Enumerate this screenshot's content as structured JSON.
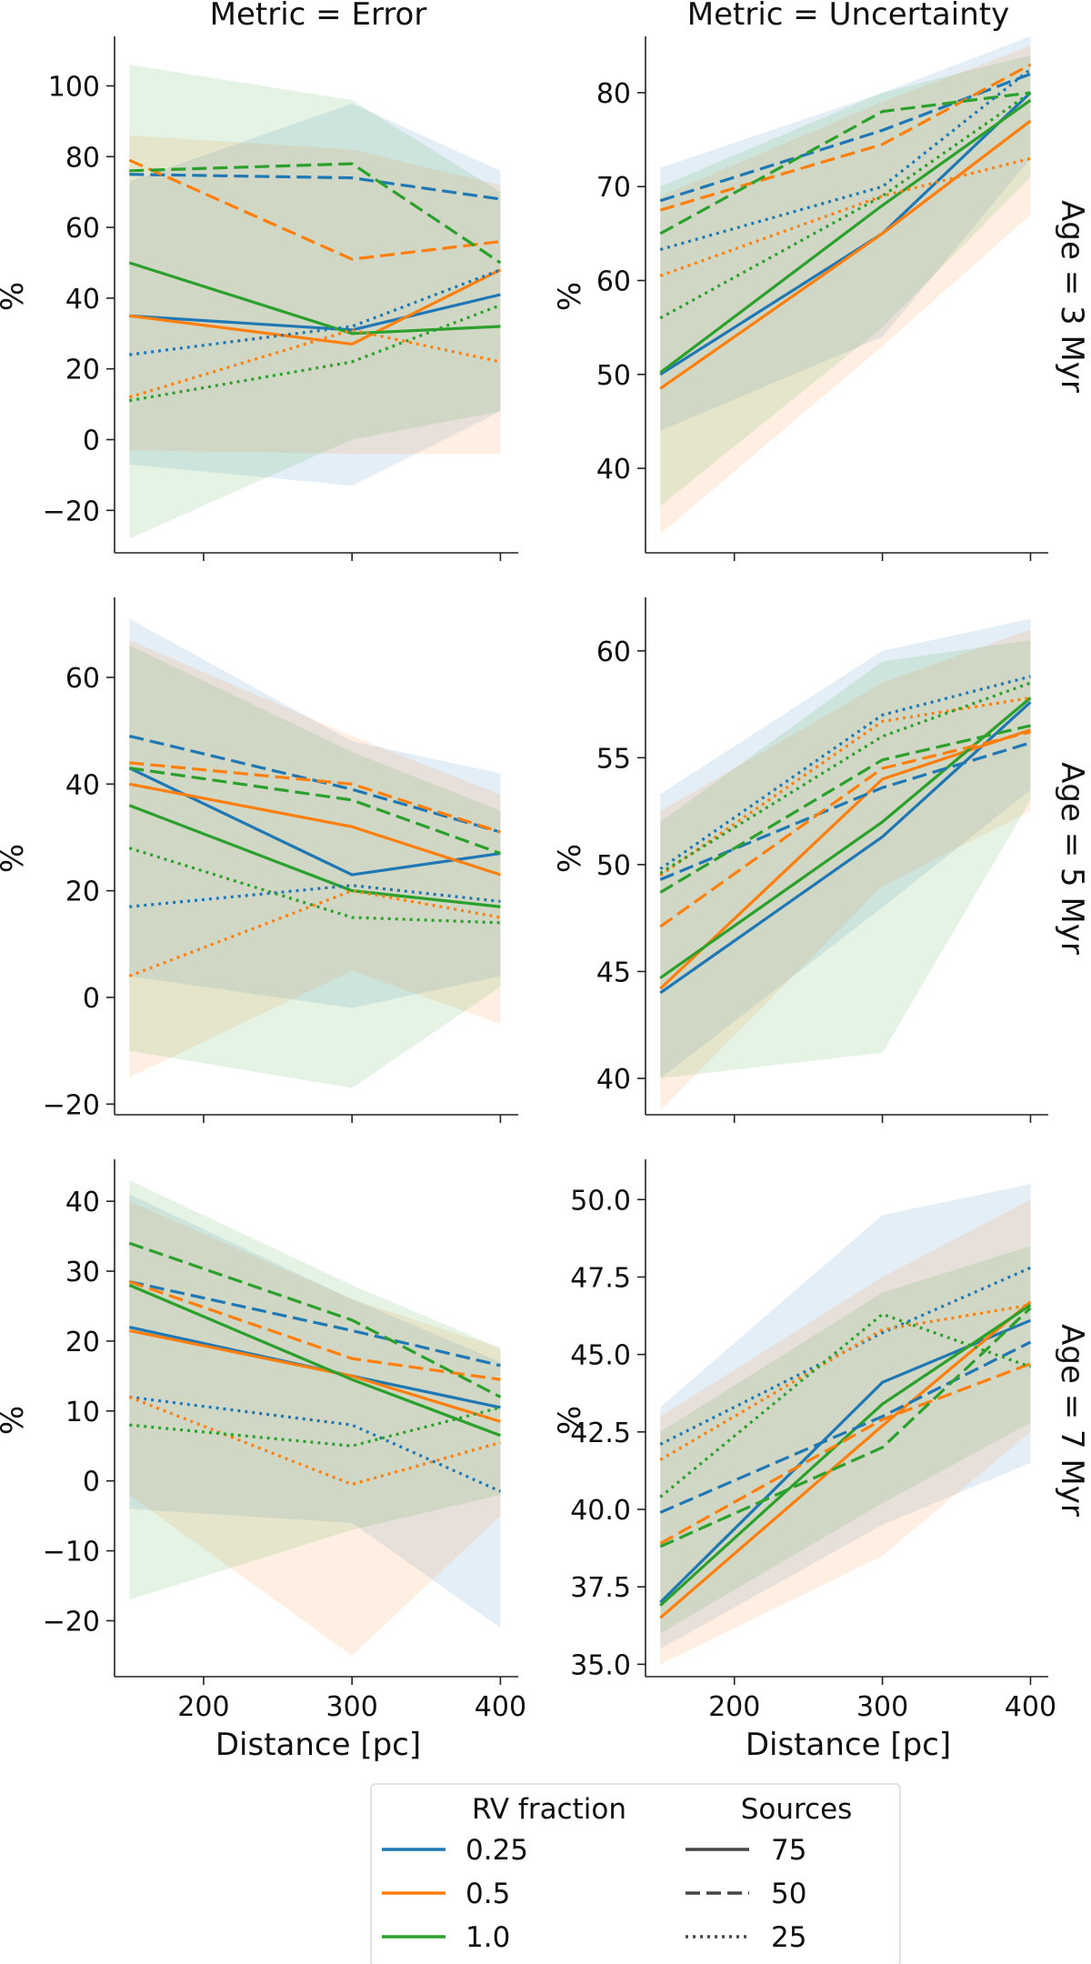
{
  "colors": {
    "0.25": "#1f77b4",
    "0.5": "#ff7f0e",
    "1.0": "#2ca02c"
  },
  "dash_styles": {
    "75": "solid",
    "50": "dashed",
    "25": "dotted"
  },
  "col_titles": [
    "Metric = Error",
    "Metric = Uncertainty"
  ],
  "row_titles": [
    "Age = 3 Myr",
    "Age = 5 Myr",
    "Age = 7 Myr"
  ],
  "ylabel": "%",
  "xlabel": "Distance [pc]",
  "legend": {
    "rv_title": "RV fraction",
    "rv_items": [
      "0.25",
      "0.5",
      "1.0"
    ],
    "src_title": "Sources",
    "src_items": [
      "75",
      "50",
      "25"
    ]
  },
  "chart_data": [
    {
      "id": "age3-error",
      "type": "line",
      "row": 0,
      "col": 0,
      "x": [
        150,
        300,
        400
      ],
      "xlim": [
        140,
        412
      ],
      "xticks": [
        200,
        300,
        400
      ],
      "ylim": [
        -32,
        114
      ],
      "yticks": [
        -20,
        0,
        20,
        40,
        60,
        80,
        100
      ],
      "ytick_labels": [
        "−20",
        "0",
        "20",
        "40",
        "60",
        "80",
        "100"
      ],
      "bands": [
        {
          "rv": "0.25",
          "lo": [
            -7,
            -13,
            8
          ],
          "hi": [
            73,
            95,
            76
          ]
        },
        {
          "rv": "0.5",
          "lo": [
            -3,
            -4,
            -4
          ],
          "hi": [
            86,
            82,
            72
          ]
        },
        {
          "rv": "1.0",
          "lo": [
            -28,
            0,
            8
          ],
          "hi": [
            106,
            96,
            70
          ]
        }
      ],
      "series": [
        {
          "rv": "0.25",
          "sources": "75",
          "values": [
            35,
            31,
            41
          ]
        },
        {
          "rv": "0.5",
          "sources": "75",
          "values": [
            35,
            27,
            48
          ]
        },
        {
          "rv": "1.0",
          "sources": "75",
          "values": [
            50,
            30,
            32
          ]
        },
        {
          "rv": "0.25",
          "sources": "50",
          "values": [
            75,
            74,
            68
          ]
        },
        {
          "rv": "0.5",
          "sources": "50",
          "values": [
            79,
            51,
            56
          ]
        },
        {
          "rv": "1.0",
          "sources": "50",
          "values": [
            76,
            78,
            50
          ]
        },
        {
          "rv": "0.25",
          "sources": "25",
          "values": [
            24,
            32,
            48
          ]
        },
        {
          "rv": "0.5",
          "sources": "25",
          "values": [
            12,
            31,
            22
          ]
        },
        {
          "rv": "1.0",
          "sources": "25",
          "values": [
            11,
            22,
            38
          ]
        }
      ]
    },
    {
      "id": "age3-uncertainty",
      "type": "line",
      "row": 0,
      "col": 1,
      "x": [
        150,
        300,
        400
      ],
      "xlim": [
        140,
        412
      ],
      "xticks": [
        200,
        300,
        400
      ],
      "ylim": [
        31,
        86
      ],
      "yticks": [
        40,
        50,
        60,
        70,
        80
      ],
      "ytick_labels": [
        "40",
        "50",
        "60",
        "70",
        "80"
      ],
      "bands": [
        {
          "rv": "0.25",
          "lo": [
            44,
            54,
            73
          ],
          "hi": [
            72,
            80,
            86
          ]
        },
        {
          "rv": "0.5",
          "lo": [
            33,
            53,
            67
          ],
          "hi": [
            69,
            79,
            85
          ]
        },
        {
          "rv": "1.0",
          "lo": [
            36,
            55,
            71
          ],
          "hi": [
            70,
            80,
            84
          ]
        }
      ],
      "series": [
        {
          "rv": "0.25",
          "sources": "75",
          "values": [
            50,
            65,
            80
          ]
        },
        {
          "rv": "0.5",
          "sources": "75",
          "values": [
            48.5,
            65,
            77
          ]
        },
        {
          "rv": "1.0",
          "sources": "75",
          "values": [
            50.2,
            68,
            79.2
          ]
        },
        {
          "rv": "0.25",
          "sources": "50",
          "values": [
            68.5,
            76,
            82
          ]
        },
        {
          "rv": "0.5",
          "sources": "50",
          "values": [
            67.5,
            74.5,
            83
          ]
        },
        {
          "rv": "1.0",
          "sources": "50",
          "values": [
            65,
            78,
            80
          ]
        },
        {
          "rv": "0.25",
          "sources": "25",
          "values": [
            63.3,
            70,
            82.5
          ]
        },
        {
          "rv": "0.5",
          "sources": "25",
          "values": [
            60.5,
            69,
            73
          ]
        },
        {
          "rv": "1.0",
          "sources": "25",
          "values": [
            56,
            69,
            80
          ]
        }
      ]
    },
    {
      "id": "age5-error",
      "type": "line",
      "row": 1,
      "col": 0,
      "x": [
        150,
        300,
        400
      ],
      "xlim": [
        140,
        412
      ],
      "xticks": [
        200,
        300,
        400
      ],
      "ylim": [
        -22,
        75
      ],
      "yticks": [
        -20,
        0,
        20,
        40,
        60
      ],
      "ytick_labels": [
        "−20",
        "0",
        "20",
        "40",
        "60"
      ],
      "bands": [
        {
          "rv": "0.25",
          "lo": [
            4,
            -2,
            4
          ],
          "hi": [
            71,
            48,
            42
          ]
        },
        {
          "rv": "0.5",
          "lo": [
            -15,
            5,
            -5
          ],
          "hi": [
            67,
            49,
            38
          ]
        },
        {
          "rv": "1.0",
          "lo": [
            -10,
            -17,
            2
          ],
          "hi": [
            66,
            46,
            35
          ]
        }
      ],
      "series": [
        {
          "rv": "0.25",
          "sources": "75",
          "values": [
            43,
            23,
            27
          ]
        },
        {
          "rv": "0.5",
          "sources": "75",
          "values": [
            40,
            32,
            23
          ]
        },
        {
          "rv": "1.0",
          "sources": "75",
          "values": [
            36,
            20,
            17
          ]
        },
        {
          "rv": "0.25",
          "sources": "50",
          "values": [
            49,
            39,
            31
          ]
        },
        {
          "rv": "0.5",
          "sources": "50",
          "values": [
            44,
            40,
            31
          ]
        },
        {
          "rv": "1.0",
          "sources": "50",
          "values": [
            43,
            37,
            27
          ]
        },
        {
          "rv": "0.25",
          "sources": "25",
          "values": [
            17,
            21,
            18
          ]
        },
        {
          "rv": "0.5",
          "sources": "25",
          "values": [
            4,
            20,
            15
          ]
        },
        {
          "rv": "1.0",
          "sources": "25",
          "values": [
            28,
            15,
            14
          ]
        }
      ]
    },
    {
      "id": "age5-uncertainty",
      "type": "line",
      "row": 1,
      "col": 1,
      "x": [
        150,
        300,
        400
      ],
      "xlim": [
        140,
        412
      ],
      "xticks": [
        200,
        300,
        400
      ],
      "ylim": [
        38.3,
        62.5
      ],
      "yticks": [
        40,
        45,
        50,
        55,
        60
      ],
      "ytick_labels": [
        "40",
        "45",
        "50",
        "55",
        "60"
      ],
      "bands": [
        {
          "rv": "0.25",
          "lo": [
            40,
            48,
            53.5
          ],
          "hi": [
            53.3,
            60,
            61.5
          ]
        },
        {
          "rv": "0.5",
          "lo": [
            38.5,
            49,
            52.5
          ],
          "hi": [
            52.5,
            58.5,
            61
          ]
        },
        {
          "rv": "1.0",
          "lo": [
            40,
            41.2,
            53
          ],
          "hi": [
            52,
            59.5,
            60.5
          ]
        }
      ],
      "series": [
        {
          "rv": "0.25",
          "sources": "75",
          "values": [
            44,
            51.3,
            57.6
          ]
        },
        {
          "rv": "0.5",
          "sources": "75",
          "values": [
            44.2,
            54,
            56.3
          ]
        },
        {
          "rv": "1.0",
          "sources": "75",
          "values": [
            44.7,
            52,
            57.8
          ]
        },
        {
          "rv": "0.25",
          "sources": "50",
          "values": [
            49.3,
            53.6,
            55.7
          ]
        },
        {
          "rv": "0.5",
          "sources": "50",
          "values": [
            47.1,
            54.5,
            56.2
          ]
        },
        {
          "rv": "1.0",
          "sources": "50",
          "values": [
            48.7,
            54.9,
            56.5
          ]
        },
        {
          "rv": "0.25",
          "sources": "25",
          "values": [
            49.8,
            57,
            58.8
          ]
        },
        {
          "rv": "0.5",
          "sources": "25",
          "values": [
            49.5,
            56.7,
            57.8
          ]
        },
        {
          "rv": "1.0",
          "sources": "25",
          "values": [
            49.6,
            56,
            58.5
          ]
        }
      ]
    },
    {
      "id": "age7-error",
      "type": "line",
      "row": 2,
      "col": 0,
      "x": [
        150,
        300,
        400
      ],
      "xlim": [
        140,
        412
      ],
      "xticks": [
        200,
        300,
        400
      ],
      "ylim": [
        -28,
        46
      ],
      "yticks": [
        -20,
        -10,
        0,
        10,
        20,
        30,
        40
      ],
      "ytick_labels": [
        "−20",
        "−10",
        "0",
        "10",
        "20",
        "30",
        "40"
      ],
      "bands": [
        {
          "rv": "0.25",
          "lo": [
            -4,
            -6,
            -21
          ],
          "hi": [
            41,
            26,
            17
          ]
        },
        {
          "rv": "0.5",
          "lo": [
            -2,
            -25,
            -5
          ],
          "hi": [
            40,
            26,
            19
          ]
        },
        {
          "rv": "1.0",
          "lo": [
            -17,
            -7,
            -2
          ],
          "hi": [
            43,
            28,
            19
          ]
        }
      ],
      "series": [
        {
          "rv": "0.25",
          "sources": "75",
          "values": [
            22,
            15,
            10.5
          ]
        },
        {
          "rv": "0.5",
          "sources": "75",
          "values": [
            21.5,
            15,
            8.5
          ]
        },
        {
          "rv": "1.0",
          "sources": "75",
          "values": [
            28,
            14.5,
            6.5
          ]
        },
        {
          "rv": "0.25",
          "sources": "50",
          "values": [
            28.5,
            21.5,
            16.5
          ]
        },
        {
          "rv": "0.5",
          "sources": "50",
          "values": [
            28.5,
            17.5,
            14.5
          ]
        },
        {
          "rv": "1.0",
          "sources": "50",
          "values": [
            34,
            23,
            12
          ]
        },
        {
          "rv": "0.25",
          "sources": "25",
          "values": [
            12,
            8,
            -1.5
          ]
        },
        {
          "rv": "0.5",
          "sources": "25",
          "values": [
            12,
            -0.5,
            5.5
          ]
        },
        {
          "rv": "1.0",
          "sources": "25",
          "values": [
            8,
            5,
            10.5
          ]
        }
      ]
    },
    {
      "id": "age7-uncertainty",
      "type": "line",
      "row": 2,
      "col": 1,
      "x": [
        150,
        300,
        400
      ],
      "xlim": [
        140,
        412
      ],
      "xticks": [
        200,
        300,
        400
      ],
      "ylim": [
        34.6,
        51.3
      ],
      "yticks": [
        35,
        37.5,
        40,
        42.5,
        45,
        47.5,
        50
      ],
      "ytick_labels": [
        "35.0",
        "37.5",
        "40.0",
        "42.5",
        "45.0",
        "47.5",
        "50.0"
      ],
      "bands": [
        {
          "rv": "0.25",
          "lo": [
            35.5,
            39.5,
            41.5
          ],
          "hi": [
            43.3,
            49.5,
            50.5
          ]
        },
        {
          "rv": "0.5",
          "lo": [
            35,
            38.5,
            42.5
          ],
          "hi": [
            43,
            47.5,
            50
          ]
        },
        {
          "rv": "1.0",
          "lo": [
            36,
            40.2,
            42.8
          ],
          "hi": [
            42.5,
            47,
            48.5
          ]
        }
      ],
      "series": [
        {
          "rv": "0.25",
          "sources": "75",
          "values": [
            37,
            44.1,
            46.1
          ]
        },
        {
          "rv": "0.5",
          "sources": "75",
          "values": [
            36.5,
            42.7,
            46.7
          ]
        },
        {
          "rv": "1.0",
          "sources": "75",
          "values": [
            36.9,
            43.4,
            46.6
          ]
        },
        {
          "rv": "0.25",
          "sources": "50",
          "values": [
            39.9,
            43,
            45.4
          ]
        },
        {
          "rv": "0.5",
          "sources": "50",
          "values": [
            38.9,
            42.9,
            44.7
          ]
        },
        {
          "rv": "1.0",
          "sources": "50",
          "values": [
            38.8,
            42,
            46.5
          ]
        },
        {
          "rv": "0.25",
          "sources": "25",
          "values": [
            42.1,
            45.7,
            47.8
          ]
        },
        {
          "rv": "0.5",
          "sources": "25",
          "values": [
            41.6,
            45.8,
            46.6
          ]
        },
        {
          "rv": "1.0",
          "sources": "25",
          "values": [
            40.4,
            46.3,
            44.6
          ]
        }
      ]
    }
  ]
}
